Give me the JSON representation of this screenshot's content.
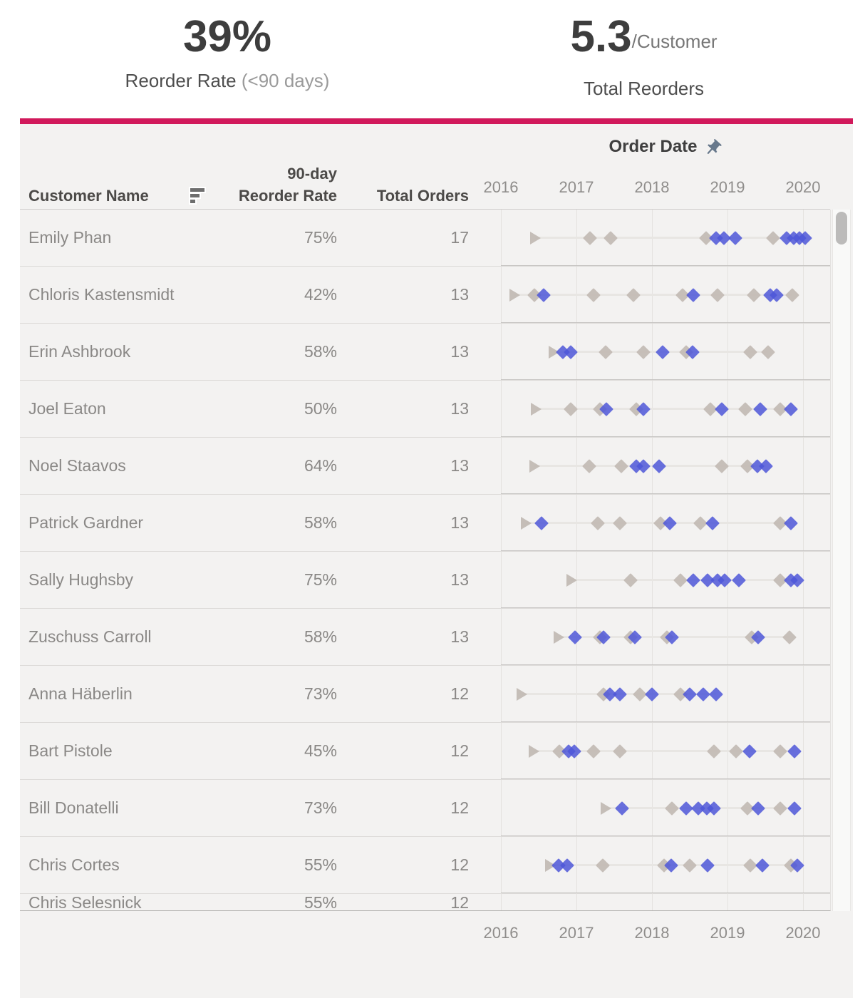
{
  "kpis": {
    "reorder_rate": {
      "value": "39%",
      "label": "Reorder Rate",
      "label_note": "(<90 days)"
    },
    "total_reorders": {
      "value": "5.3",
      "suffix": "/Customer",
      "label": "Total Reorders"
    }
  },
  "colors": {
    "accent_bar": "#d1195b",
    "reorder_marker": "#4e57d8",
    "order_marker": "#c2bbb4",
    "panel_bg": "#f3f2f1"
  },
  "icons": {
    "sort": "sort-descending-icon",
    "pin": "pushpin-icon"
  },
  "table": {
    "headers": {
      "customer": "Customer Name",
      "rate_line1": "90-day",
      "rate_line2": "Reorder Rate",
      "orders": "Total Orders",
      "date": "Order Date"
    }
  },
  "chart_data": {
    "type": "scatter",
    "title": "Order Date",
    "x_axis": {
      "ticks": [
        "2016",
        "2017",
        "2018",
        "2019",
        "2020"
      ],
      "range": [
        2016,
        2020.36
      ],
      "gridlines": true
    },
    "marker_meaning": {
      "first_order": "gray triangle",
      "order": "gray diamond",
      "reorder": "blue diamond (reordered <90 days)"
    },
    "series": [
      {
        "name": "Emily Phan",
        "reorder_rate": "75%",
        "total_orders": 17,
        "markers": [
          {
            "t": "first_order",
            "x": 2016.45
          },
          {
            "t": "order",
            "x": 2017.18
          },
          {
            "t": "order",
            "x": 2017.45
          },
          {
            "t": "order",
            "x": 2018.72
          },
          {
            "t": "reorder",
            "x": 2018.85
          },
          {
            "t": "reorder",
            "x": 2018.95
          },
          {
            "t": "reorder",
            "x": 2019.1
          },
          {
            "t": "order",
            "x": 2019.6
          },
          {
            "t": "reorder",
            "x": 2019.78
          },
          {
            "t": "reorder",
            "x": 2019.88
          },
          {
            "t": "reorder",
            "x": 2019.95
          },
          {
            "t": "reorder",
            "x": 2020.03
          }
        ]
      },
      {
        "name": "Chloris Kastensmidt",
        "reorder_rate": "42%",
        "total_orders": 13,
        "markers": [
          {
            "t": "first_order",
            "x": 2016.18
          },
          {
            "t": "order",
            "x": 2016.44
          },
          {
            "t": "reorder",
            "x": 2016.57
          },
          {
            "t": "order",
            "x": 2017.23
          },
          {
            "t": "order",
            "x": 2017.75
          },
          {
            "t": "order",
            "x": 2018.41
          },
          {
            "t": "reorder",
            "x": 2018.55
          },
          {
            "t": "order",
            "x": 2018.87
          },
          {
            "t": "order",
            "x": 2019.35
          },
          {
            "t": "reorder",
            "x": 2019.57
          },
          {
            "t": "reorder",
            "x": 2019.65
          },
          {
            "t": "order",
            "x": 2019.86
          }
        ]
      },
      {
        "name": "Erin Ashbrook",
        "reorder_rate": "58%",
        "total_orders": 13,
        "markers": [
          {
            "t": "first_order",
            "x": 2016.7
          },
          {
            "t": "reorder",
            "x": 2016.82
          },
          {
            "t": "reorder",
            "x": 2016.92
          },
          {
            "t": "order",
            "x": 2017.39
          },
          {
            "t": "order",
            "x": 2017.89
          },
          {
            "t": "reorder",
            "x": 2018.14
          },
          {
            "t": "order",
            "x": 2018.45
          },
          {
            "t": "reorder",
            "x": 2018.54
          },
          {
            "t": "order",
            "x": 2019.3
          },
          {
            "t": "order",
            "x": 2019.54
          }
        ]
      },
      {
        "name": "Joel Eaton",
        "reorder_rate": "50%",
        "total_orders": 13,
        "markers": [
          {
            "t": "first_order",
            "x": 2016.46
          },
          {
            "t": "order",
            "x": 2016.92
          },
          {
            "t": "order",
            "x": 2017.31
          },
          {
            "t": "reorder",
            "x": 2017.4
          },
          {
            "t": "order",
            "x": 2017.79
          },
          {
            "t": "reorder",
            "x": 2017.89
          },
          {
            "t": "order",
            "x": 2018.77
          },
          {
            "t": "reorder",
            "x": 2018.92
          },
          {
            "t": "order",
            "x": 2019.24
          },
          {
            "t": "reorder",
            "x": 2019.43
          },
          {
            "t": "order",
            "x": 2019.7
          },
          {
            "t": "reorder",
            "x": 2019.84
          }
        ]
      },
      {
        "name": "Noel Staavos",
        "reorder_rate": "64%",
        "total_orders": 13,
        "markers": [
          {
            "t": "first_order",
            "x": 2016.44
          },
          {
            "t": "order",
            "x": 2017.17
          },
          {
            "t": "order",
            "x": 2017.59
          },
          {
            "t": "reorder",
            "x": 2017.79
          },
          {
            "t": "reorder",
            "x": 2017.89
          },
          {
            "t": "reorder",
            "x": 2018.09
          },
          {
            "t": "order",
            "x": 2018.92
          },
          {
            "t": "order",
            "x": 2019.26
          },
          {
            "t": "reorder",
            "x": 2019.4
          },
          {
            "t": "reorder",
            "x": 2019.51
          }
        ]
      },
      {
        "name": "Patrick Gardner",
        "reorder_rate": "58%",
        "total_orders": 13,
        "markers": [
          {
            "t": "first_order",
            "x": 2016.33
          },
          {
            "t": "reorder",
            "x": 2016.54
          },
          {
            "t": "order",
            "x": 2017.28
          },
          {
            "t": "order",
            "x": 2017.58
          },
          {
            "t": "order",
            "x": 2018.11
          },
          {
            "t": "reorder",
            "x": 2018.24
          },
          {
            "t": "order",
            "x": 2018.64
          },
          {
            "t": "reorder",
            "x": 2018.8
          },
          {
            "t": "order",
            "x": 2019.7
          },
          {
            "t": "reorder",
            "x": 2019.84
          }
        ]
      },
      {
        "name": "Sally Hughsby",
        "reorder_rate": "75%",
        "total_orders": 13,
        "markers": [
          {
            "t": "first_order",
            "x": 2016.93
          },
          {
            "t": "order",
            "x": 2017.72
          },
          {
            "t": "order",
            "x": 2018.38
          },
          {
            "t": "reorder",
            "x": 2018.55
          },
          {
            "t": "reorder",
            "x": 2018.74
          },
          {
            "t": "reorder",
            "x": 2018.87
          },
          {
            "t": "reorder",
            "x": 2018.96
          },
          {
            "t": "reorder",
            "x": 2019.15
          },
          {
            "t": "order",
            "x": 2019.7
          },
          {
            "t": "reorder",
            "x": 2019.84
          },
          {
            "t": "reorder",
            "x": 2019.92
          }
        ]
      },
      {
        "name": "Zuschuss Carroll",
        "reorder_rate": "58%",
        "total_orders": 13,
        "markers": [
          {
            "t": "first_order",
            "x": 2016.76
          },
          {
            "t": "reorder",
            "x": 2016.98
          },
          {
            "t": "order",
            "x": 2017.31
          },
          {
            "t": "reorder",
            "x": 2017.36
          },
          {
            "t": "order",
            "x": 2017.72
          },
          {
            "t": "reorder",
            "x": 2017.77
          },
          {
            "t": "order",
            "x": 2018.2
          },
          {
            "t": "reorder",
            "x": 2018.26
          },
          {
            "t": "order",
            "x": 2019.32
          },
          {
            "t": "reorder",
            "x": 2019.41
          },
          {
            "t": "order",
            "x": 2019.82
          }
        ]
      },
      {
        "name": "Anna Häberlin",
        "reorder_rate": "73%",
        "total_orders": 12,
        "markers": [
          {
            "t": "first_order",
            "x": 2016.27
          },
          {
            "t": "order",
            "x": 2017.36
          },
          {
            "t": "reorder",
            "x": 2017.44
          },
          {
            "t": "reorder",
            "x": 2017.58
          },
          {
            "t": "order",
            "x": 2017.84
          },
          {
            "t": "reorder",
            "x": 2018.0
          },
          {
            "t": "order",
            "x": 2018.38
          },
          {
            "t": "reorder",
            "x": 2018.5
          },
          {
            "t": "reorder",
            "x": 2018.68
          },
          {
            "t": "reorder",
            "x": 2018.85
          }
        ]
      },
      {
        "name": "Bart Pistole",
        "reorder_rate": "45%",
        "total_orders": 12,
        "markers": [
          {
            "t": "first_order",
            "x": 2016.43
          },
          {
            "t": "order",
            "x": 2016.77
          },
          {
            "t": "reorder",
            "x": 2016.9
          },
          {
            "t": "reorder",
            "x": 2016.97
          },
          {
            "t": "order",
            "x": 2017.23
          },
          {
            "t": "order",
            "x": 2017.58
          },
          {
            "t": "order",
            "x": 2018.82
          },
          {
            "t": "order",
            "x": 2019.11
          },
          {
            "t": "reorder",
            "x": 2019.29
          },
          {
            "t": "order",
            "x": 2019.7
          },
          {
            "t": "reorder",
            "x": 2019.89
          }
        ]
      },
      {
        "name": "Bill Donatelli",
        "reorder_rate": "73%",
        "total_orders": 12,
        "markers": [
          {
            "t": "first_order",
            "x": 2017.39
          },
          {
            "t": "reorder",
            "x": 2017.6
          },
          {
            "t": "order",
            "x": 2018.26
          },
          {
            "t": "reorder",
            "x": 2018.45
          },
          {
            "t": "reorder",
            "x": 2018.61
          },
          {
            "t": "reorder",
            "x": 2018.73
          },
          {
            "t": "reorder",
            "x": 2018.82
          },
          {
            "t": "order",
            "x": 2019.26
          },
          {
            "t": "reorder",
            "x": 2019.41
          },
          {
            "t": "order",
            "x": 2019.7
          },
          {
            "t": "reorder",
            "x": 2019.89
          }
        ]
      },
      {
        "name": "Chris Cortes",
        "reorder_rate": "55%",
        "total_orders": 12,
        "markers": [
          {
            "t": "first_order",
            "x": 2016.65
          },
          {
            "t": "reorder",
            "x": 2016.76
          },
          {
            "t": "reorder",
            "x": 2016.88
          },
          {
            "t": "order",
            "x": 2017.35
          },
          {
            "t": "order",
            "x": 2018.16
          },
          {
            "t": "reorder",
            "x": 2018.25
          },
          {
            "t": "order",
            "x": 2018.5
          },
          {
            "t": "reorder",
            "x": 2018.74
          },
          {
            "t": "order",
            "x": 2019.3
          },
          {
            "t": "reorder",
            "x": 2019.46
          },
          {
            "t": "order",
            "x": 2019.84
          },
          {
            "t": "reorder",
            "x": 2019.92
          }
        ]
      },
      {
        "name": "Chris Selesnick",
        "reorder_rate": "55%",
        "total_orders": 12,
        "partial": true,
        "markers": []
      }
    ]
  }
}
